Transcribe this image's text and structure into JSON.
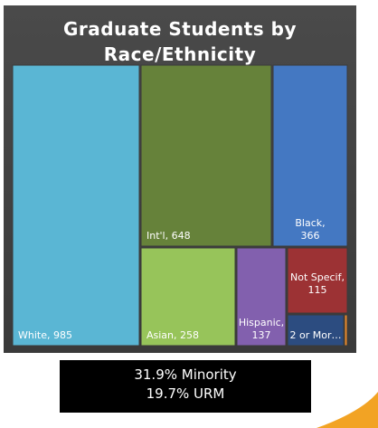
{
  "chart_data": {
    "type": "treemap",
    "title_lines": [
      "Graduate Students by",
      "Race/Ethnicity"
    ],
    "tiles": [
      {
        "label": "White, 985",
        "name": "White",
        "value": 985,
        "color": "#5ab6d4"
      },
      {
        "label": "Int'l, 648",
        "name": "Int'l",
        "value": 648,
        "color": "#66823a"
      },
      {
        "label": "Black, 366",
        "name": "Black",
        "value": 366,
        "color": "#4478c2"
      },
      {
        "label": "Asian, 258",
        "name": "Asian",
        "value": 258,
        "color": "#97c45a"
      },
      {
        "label": "Hispanic, 137",
        "name": "Hispanic",
        "value": 137,
        "color": "#8260ae"
      },
      {
        "label": "Not Specif, 115",
        "name": "Not Specif",
        "value": 115,
        "color": "#9c3234"
      },
      {
        "label": "2 or Mor…",
        "name": "2 or More",
        "value": 0,
        "color": "#2c4c80"
      },
      {
        "label": "",
        "name": "",
        "value": 0,
        "color": "#e8892c"
      }
    ]
  },
  "summary": {
    "minority": "31.9% Minority",
    "urm": "19.7% URM"
  },
  "colors": {
    "panel_bg": "#404040",
    "accent_swoosh": "#f2a324"
  }
}
